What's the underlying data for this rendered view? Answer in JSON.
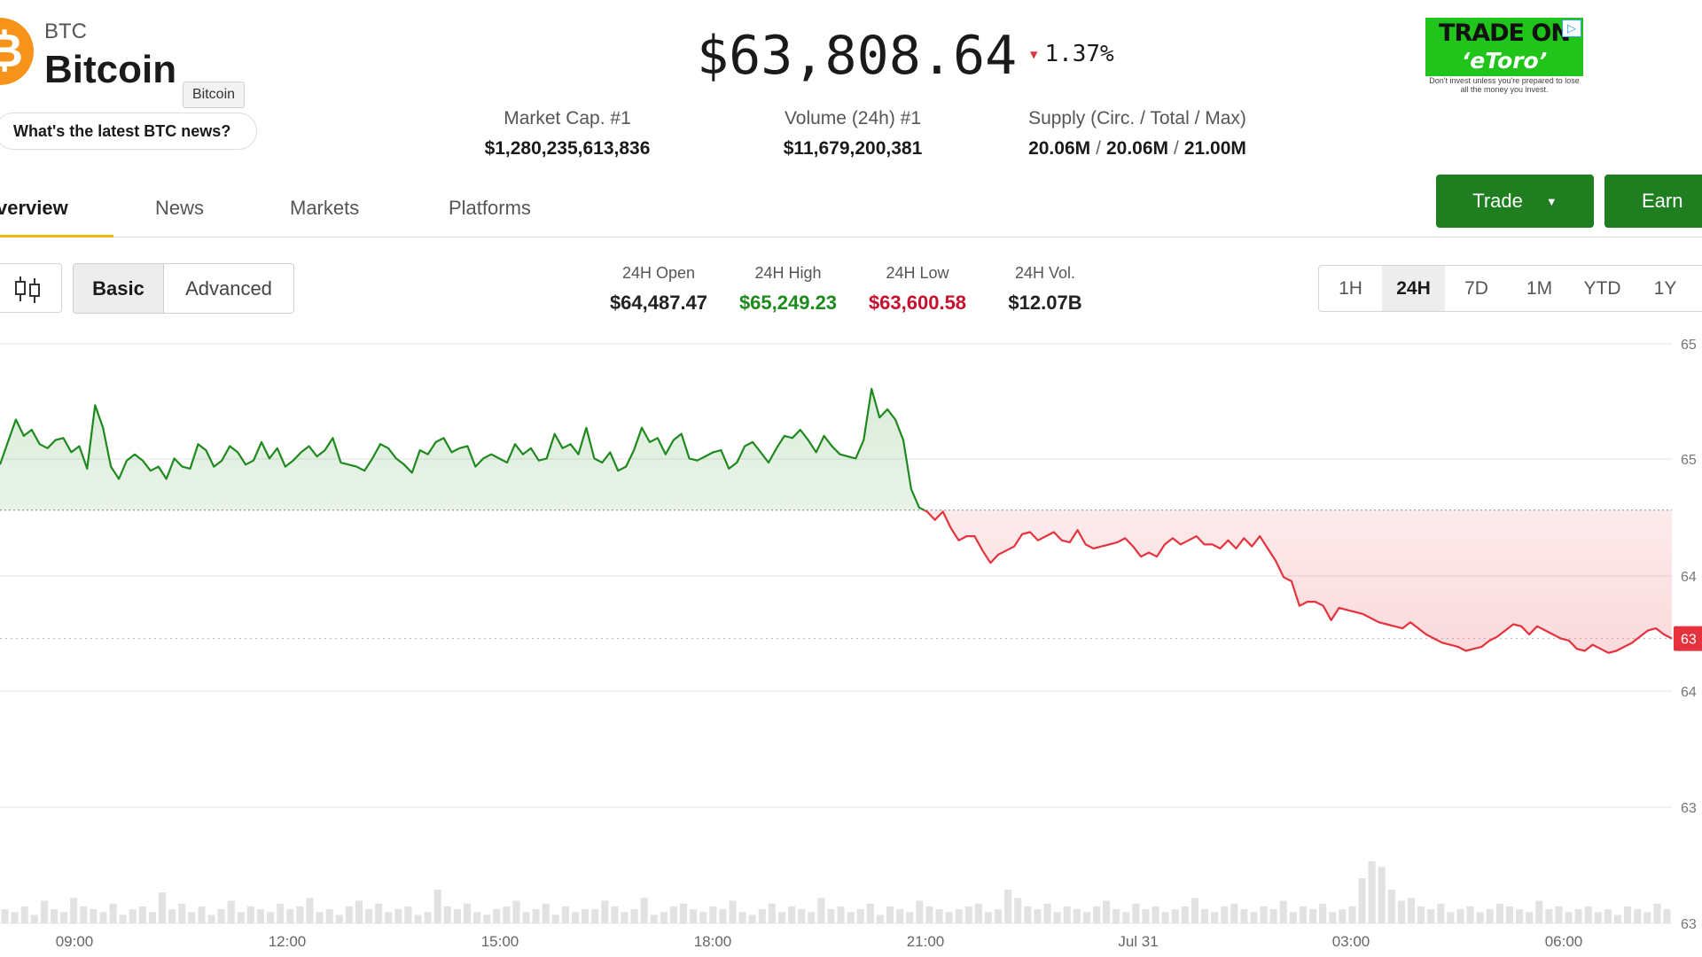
{
  "coin": {
    "logo_glyph": "₿",
    "symbol": "BTC",
    "name": "Bitcoin",
    "tooltip": "Bitcoin",
    "news_prompt": "What's the latest BTC news?",
    "price": "$63,808.64",
    "change": "1.37%",
    "change_direction": "down",
    "colors": {
      "logo": "#f7931a",
      "up": "#1e8a1e",
      "down": "#e5323d",
      "accent": "#1e7e20"
    }
  },
  "stats": [
    {
      "label": "Market Cap. #1",
      "value": "$1,280,235,613,836"
    },
    {
      "label": "Volume (24h) #1",
      "value": "$11,679,200,381"
    },
    {
      "label": "Supply (Circ. / Total / Max)",
      "values": [
        "20.06M",
        "20.06M",
        "21.00M"
      ],
      "separator": "/"
    }
  ],
  "ad": {
    "line1": "TRADE ON",
    "line2": "‘eToro’",
    "adchoices_icon": "play-triangle-icon",
    "disclaimer": "Don't invest unless you're prepared to lose all the money you invest."
  },
  "actions": {
    "trade_label": "Trade",
    "earn_label": "Earn"
  },
  "tabs": [
    {
      "label": "Overview",
      "visible_text": "verview",
      "active": true
    },
    {
      "label": "News",
      "active": false
    },
    {
      "label": "Markets",
      "active": false
    },
    {
      "label": "Platforms",
      "active": false
    }
  ],
  "view_toggle": {
    "icon": "candlestick-icon",
    "options": [
      "Basic",
      "Advanced"
    ],
    "selected": "Basic"
  },
  "day_stats": [
    {
      "label": "24H Open",
      "value": "$64,487.47",
      "tone": "neutral"
    },
    {
      "label": "24H High",
      "value": "$65,249.23",
      "tone": "up"
    },
    {
      "label": "24H Low",
      "value": "$63,600.58",
      "tone": "down"
    },
    {
      "label": "24H Vol.",
      "value": "$12.07B",
      "tone": "neutral"
    }
  ],
  "ranges": {
    "options": [
      "1H",
      "24H",
      "7D",
      "1M",
      "YTD",
      "1Y"
    ],
    "selected": "24H"
  },
  "chart_data": {
    "type": "area",
    "baseline": 64487.47,
    "current_label": "63",
    "x_ticks": [
      "09:00",
      "12:00",
      "15:00",
      "18:00",
      "21:00",
      "Jul 31",
      "03:00",
      "06:00"
    ],
    "y_ticks": [
      "65",
      "65",
      "64",
      "64",
      "63",
      "63"
    ],
    "ylim": [
      63300,
      65300
    ],
    "series": [
      {
        "values": [
          64710,
          64820,
          64930,
          64850,
          64880,
          64810,
          64790,
          64830,
          64840,
          64770,
          64800,
          64690,
          65000,
          64890,
          64700,
          64640,
          64730,
          64760,
          64730,
          64680,
          64700,
          64640,
          64740,
          64700,
          64690,
          64810,
          64780,
          64700,
          64730,
          64800,
          64770,
          64710,
          64730,
          64820,
          64740,
          64790,
          64700,
          64730,
          64770,
          64800,
          64750,
          64780,
          64840,
          64720,
          64710,
          64700,
          64680,
          64740,
          64810,
          64790,
          64740,
          64710,
          64670,
          64780,
          64760,
          64820,
          64840,
          64770,
          64790,
          64800,
          64700,
          64740,
          64760,
          64740,
          64720,
          64810,
          64760,
          64790,
          64730,
          64740,
          64860,
          64790,
          64810,
          64760,
          64890,
          64740,
          64720,
          64770,
          64680,
          64700,
          64780,
          64890,
          64820,
          64840,
          64760,
          64830,
          64860,
          64740,
          64730,
          64750,
          64770,
          64780,
          64690,
          64720,
          64800,
          64820,
          64770,
          64720,
          64790,
          64850,
          64840,
          64880,
          64830,
          64770,
          64850,
          64800,
          64760,
          64750,
          64740,
          64830,
          65080,
          64940,
          64980,
          64930,
          64830,
          64590,
          64500,
          64480,
          64440,
          64480,
          64400,
          64340,
          64360,
          64360,
          64290,
          64230,
          64270,
          64290,
          64310,
          64370,
          64380,
          64340,
          64360,
          64380,
          64340,
          64330,
          64390,
          64320,
          64300,
          64310,
          64320,
          64330,
          64350,
          64310,
          64260,
          64280,
          64260,
          64320,
          64350,
          64320,
          64340,
          64360,
          64320,
          64320,
          64300,
          64340,
          64300,
          64350,
          64310,
          64360,
          64300,
          64240,
          64160,
          64140,
          64020,
          64040,
          64040,
          64020,
          63950,
          64010,
          64000,
          63990,
          63980,
          63960,
          63940,
          63930,
          63920,
          63910,
          63940,
          63910,
          63880,
          63860,
          63840,
          63830,
          63820,
          63800,
          63810,
          63820,
          63850,
          63870,
          63900,
          63930,
          63920,
          63880,
          63920,
          63900,
          63880,
          63860,
          63850,
          63810,
          63800,
          63830,
          63810,
          63790,
          63800,
          63820,
          63840,
          63870,
          63900,
          63910,
          63880,
          63860
        ]
      }
    ],
    "volume": [
      5,
      4,
      6,
      3,
      8,
      5,
      4,
      9,
      6,
      5,
      4,
      7,
      3,
      5,
      6,
      4,
      11,
      5,
      7,
      4,
      6,
      3,
      5,
      8,
      4,
      6,
      5,
      4,
      7,
      5,
      6,
      9,
      4,
      5,
      3,
      6,
      8,
      5,
      7,
      4,
      5,
      6,
      3,
      4,
      12,
      6,
      5,
      7,
      4,
      3,
      5,
      6,
      8,
      4,
      5,
      7,
      3,
      6,
      4,
      5,
      5,
      8,
      6,
      4,
      5,
      9,
      3,
      4,
      6,
      7,
      5,
      4,
      6,
      5,
      8,
      4,
      3,
      5,
      7,
      4,
      6,
      5,
      4,
      9,
      5,
      6,
      4,
      5,
      7,
      3,
      6,
      5,
      4,
      8,
      6,
      5,
      4,
      5,
      6,
      7,
      4,
      5,
      12,
      9,
      6,
      5,
      7,
      4,
      6,
      5,
      4,
      6,
      8,
      5,
      4,
      7,
      5,
      6,
      4,
      5,
      6,
      9,
      5,
      4,
      6,
      7,
      5,
      4,
      6,
      5,
      8,
      4,
      6,
      5,
      7,
      4,
      5,
      6,
      16,
      22,
      20,
      12,
      8,
      9,
      6,
      5,
      7,
      4,
      5,
      6,
      4,
      5,
      7,
      6,
      5,
      4,
      8,
      5,
      6,
      4,
      5,
      6,
      4,
      5,
      3,
      6,
      5,
      4,
      7,
      5
    ]
  }
}
